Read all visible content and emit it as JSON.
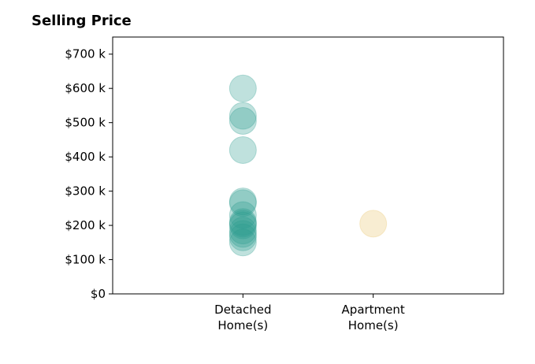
{
  "chart_data": {
    "type": "scatter",
    "title": "Selling Price",
    "xlabel": "",
    "ylabel": "",
    "categories": [
      [
        "Detached",
        "Home(s)"
      ],
      [
        "Apartment",
        "Home(s)"
      ]
    ],
    "yticks": [
      0,
      100,
      200,
      300,
      400,
      500,
      600,
      700
    ],
    "ytick_labels": [
      "$0",
      "$100 k",
      "$200 k",
      "$300 k",
      "$400 k",
      "$500 k",
      "$600 k",
      "$700 k"
    ],
    "ylim": [
      0,
      750
    ],
    "grid": false,
    "series": [
      {
        "category_index": 0,
        "color": "#2a9d8f",
        "opacity": 0.3,
        "values": [
          600,
          520,
          505,
          420,
          270,
          265,
          230,
          210,
          205,
          200,
          185,
          175,
          165,
          150
        ]
      },
      {
        "category_index": 1,
        "color": "#e9c46a",
        "opacity": 0.3,
        "values": [
          205
        ]
      }
    ]
  }
}
